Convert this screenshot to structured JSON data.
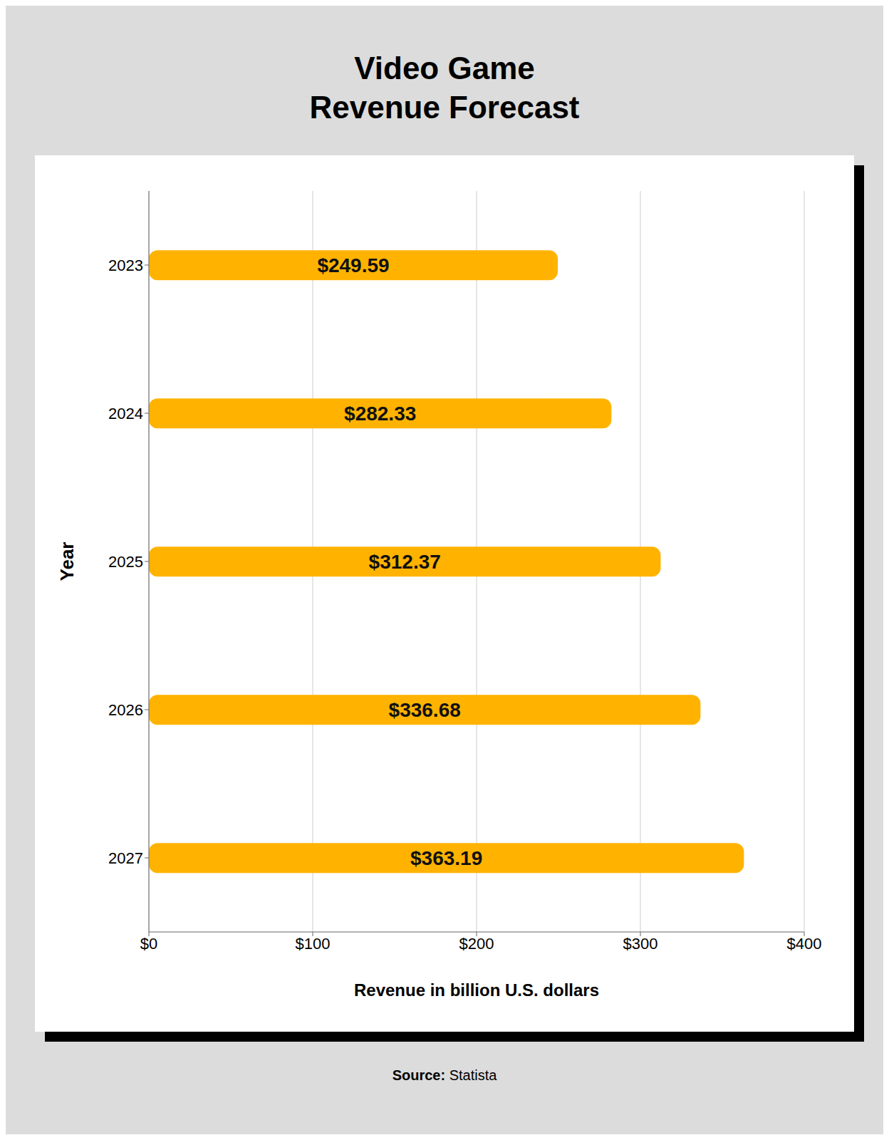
{
  "chart_data": {
    "type": "bar",
    "orientation": "horizontal",
    "title": "Video Game\nRevenue Forecast",
    "categories": [
      "2023",
      "2024",
      "2025",
      "2026",
      "2027"
    ],
    "values": [
      249.59,
      282.33,
      312.37,
      336.68,
      363.19
    ],
    "value_labels": [
      "$249.59",
      "$282.33",
      "$312.37",
      "$336.68",
      "$363.19"
    ],
    "data_labels": true,
    "color": "#FFB300",
    "xlabel": "Revenue in billion U.S. dollars",
    "ylabel": "Year",
    "xlim": [
      0,
      400
    ],
    "xticks": [
      {
        "value": 0,
        "label": "$0"
      },
      {
        "value": 100,
        "label": "$100"
      },
      {
        "value": 200,
        "label": "$200"
      },
      {
        "value": 300,
        "label": "$300"
      },
      {
        "value": 400,
        "label": "$400"
      }
    ],
    "grid": true,
    "annotations": [
      "Source: Statista"
    ]
  }
}
